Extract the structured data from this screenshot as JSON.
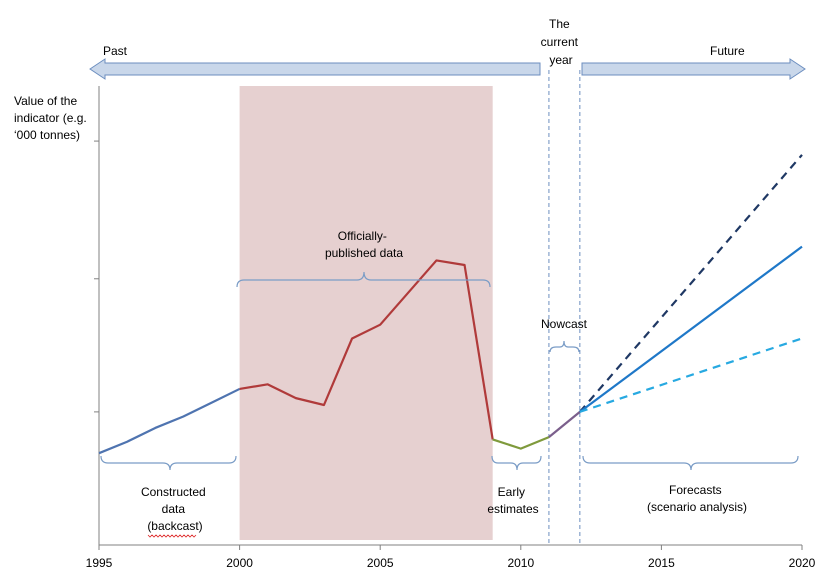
{
  "timeline": {
    "past_label": "Past",
    "future_label": "Future",
    "current_year_lines": [
      "The",
      "current",
      "year"
    ]
  },
  "y_axis": {
    "label_lines": [
      "Value of the",
      "indicator (e.g.",
      "‘000 tonnes)"
    ]
  },
  "annotations": {
    "official_lines": [
      "Officially-",
      "published data"
    ],
    "nowcast": "Nowcast",
    "constructed_lines": [
      "Constructed",
      "data",
      "(backcast)"
    ],
    "early_lines": [
      "Early",
      "estimates"
    ],
    "forecasts_lines": [
      "Forecasts",
      "(scenario analysis)"
    ]
  },
  "colors": {
    "arrow_fill": "#c9d7ea",
    "arrow_stroke": "#6c8ebf",
    "shade": "#e6d0d0",
    "brace": "#7a9cc6",
    "backcast": "#4f74b0",
    "official": "#b03a3a",
    "early": "#7f9a3c",
    "nowcast": "#7b5f8c",
    "forecast_high": "#1f3864",
    "forecast_mid": "#1f78c8",
    "forecast_low": "#27a9e1",
    "dashed_line": "#6c8ebf"
  },
  "chart_data": {
    "type": "line",
    "xlim": [
      1995,
      2020
    ],
    "ylim": [
      0,
      10
    ],
    "x_ticks": [
      1995,
      2000,
      2005,
      2010,
      2015,
      2020
    ],
    "x_tick_labels": [
      "1995",
      "2000",
      "2005",
      "2010",
      "2015",
      "2020"
    ],
    "y_tick_values": [
      2.9,
      5.8,
      8.8
    ],
    "shaded_range": [
      2000,
      2009
    ],
    "current_year_range": [
      2011,
      2012.1
    ],
    "series": [
      {
        "key": "backcast",
        "style": "solid",
        "x": [
          1995,
          1996,
          1997,
          1998,
          1999,
          2000
        ],
        "y": [
          2.0,
          2.25,
          2.55,
          2.8,
          3.1,
          3.4
        ]
      },
      {
        "key": "official",
        "style": "solid",
        "x": [
          2000,
          2001,
          2002,
          2003,
          2004,
          2005,
          2006,
          2007,
          2008,
          2009
        ],
        "y": [
          3.4,
          3.5,
          3.2,
          3.05,
          4.5,
          4.8,
          5.5,
          6.2,
          6.1,
          2.3
        ]
      },
      {
        "key": "early",
        "style": "solid",
        "x": [
          2009,
          2010,
          2011
        ],
        "y": [
          2.3,
          2.1,
          2.35
        ]
      },
      {
        "key": "nowcast",
        "style": "solid",
        "x": [
          2011,
          2012.1
        ],
        "y": [
          2.35,
          2.9
        ]
      },
      {
        "key": "forecast_high",
        "style": "dashed",
        "x": [
          2012.1,
          2020
        ],
        "y": [
          2.9,
          8.5
        ]
      },
      {
        "key": "forecast_mid",
        "style": "solid",
        "x": [
          2012.1,
          2020
        ],
        "y": [
          2.9,
          6.5
        ]
      },
      {
        "key": "forecast_low",
        "style": "dashed",
        "x": [
          2012.1,
          2020
        ],
        "y": [
          2.9,
          4.5
        ]
      }
    ]
  }
}
